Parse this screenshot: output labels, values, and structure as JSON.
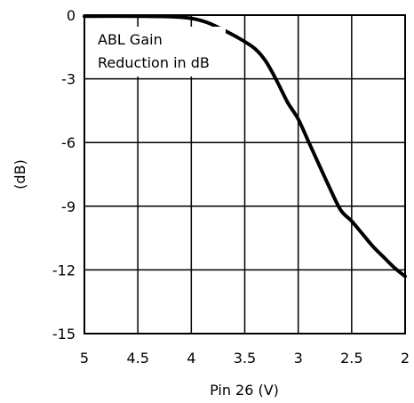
{
  "chart_data": {
    "type": "line",
    "title": "",
    "annotation": [
      "ABL Gain",
      "Reduction in dB"
    ],
    "xlabel": "Pin 26 (V)",
    "ylabel": "(dB)",
    "xlim": [
      5,
      2
    ],
    "ylim": [
      -15,
      0
    ],
    "x_reversed": true,
    "grid": true,
    "x_ticks": [
      5,
      4.5,
      4,
      3.5,
      3,
      2.5,
      2
    ],
    "x_tick_labels": [
      "5",
      "4.5",
      "4",
      "3.5",
      "3",
      "2.5",
      "2"
    ],
    "y_ticks": [
      0,
      -3,
      -6,
      -9,
      -12,
      -15
    ],
    "y_tick_labels": [
      "0",
      "-3",
      "-6",
      "-9",
      "-12",
      "-15"
    ],
    "series": [
      {
        "color": "#000000",
        "x": [
          5.0,
          4.5,
          4.2,
          4.0,
          3.85,
          3.7,
          3.55,
          3.4,
          3.3,
          3.2,
          3.1,
          3.0,
          2.9,
          2.8,
          2.7,
          2.6,
          2.5,
          2.4,
          2.3,
          2.2,
          2.1,
          2.0
        ],
        "y": [
          -0.05,
          -0.05,
          -0.07,
          -0.15,
          -0.35,
          -0.7,
          -1.1,
          -1.6,
          -2.2,
          -3.1,
          -4.1,
          -4.9,
          -6.0,
          -7.1,
          -8.2,
          -9.2,
          -9.7,
          -10.3,
          -10.9,
          -11.4,
          -11.9,
          -12.3
        ]
      }
    ]
  }
}
